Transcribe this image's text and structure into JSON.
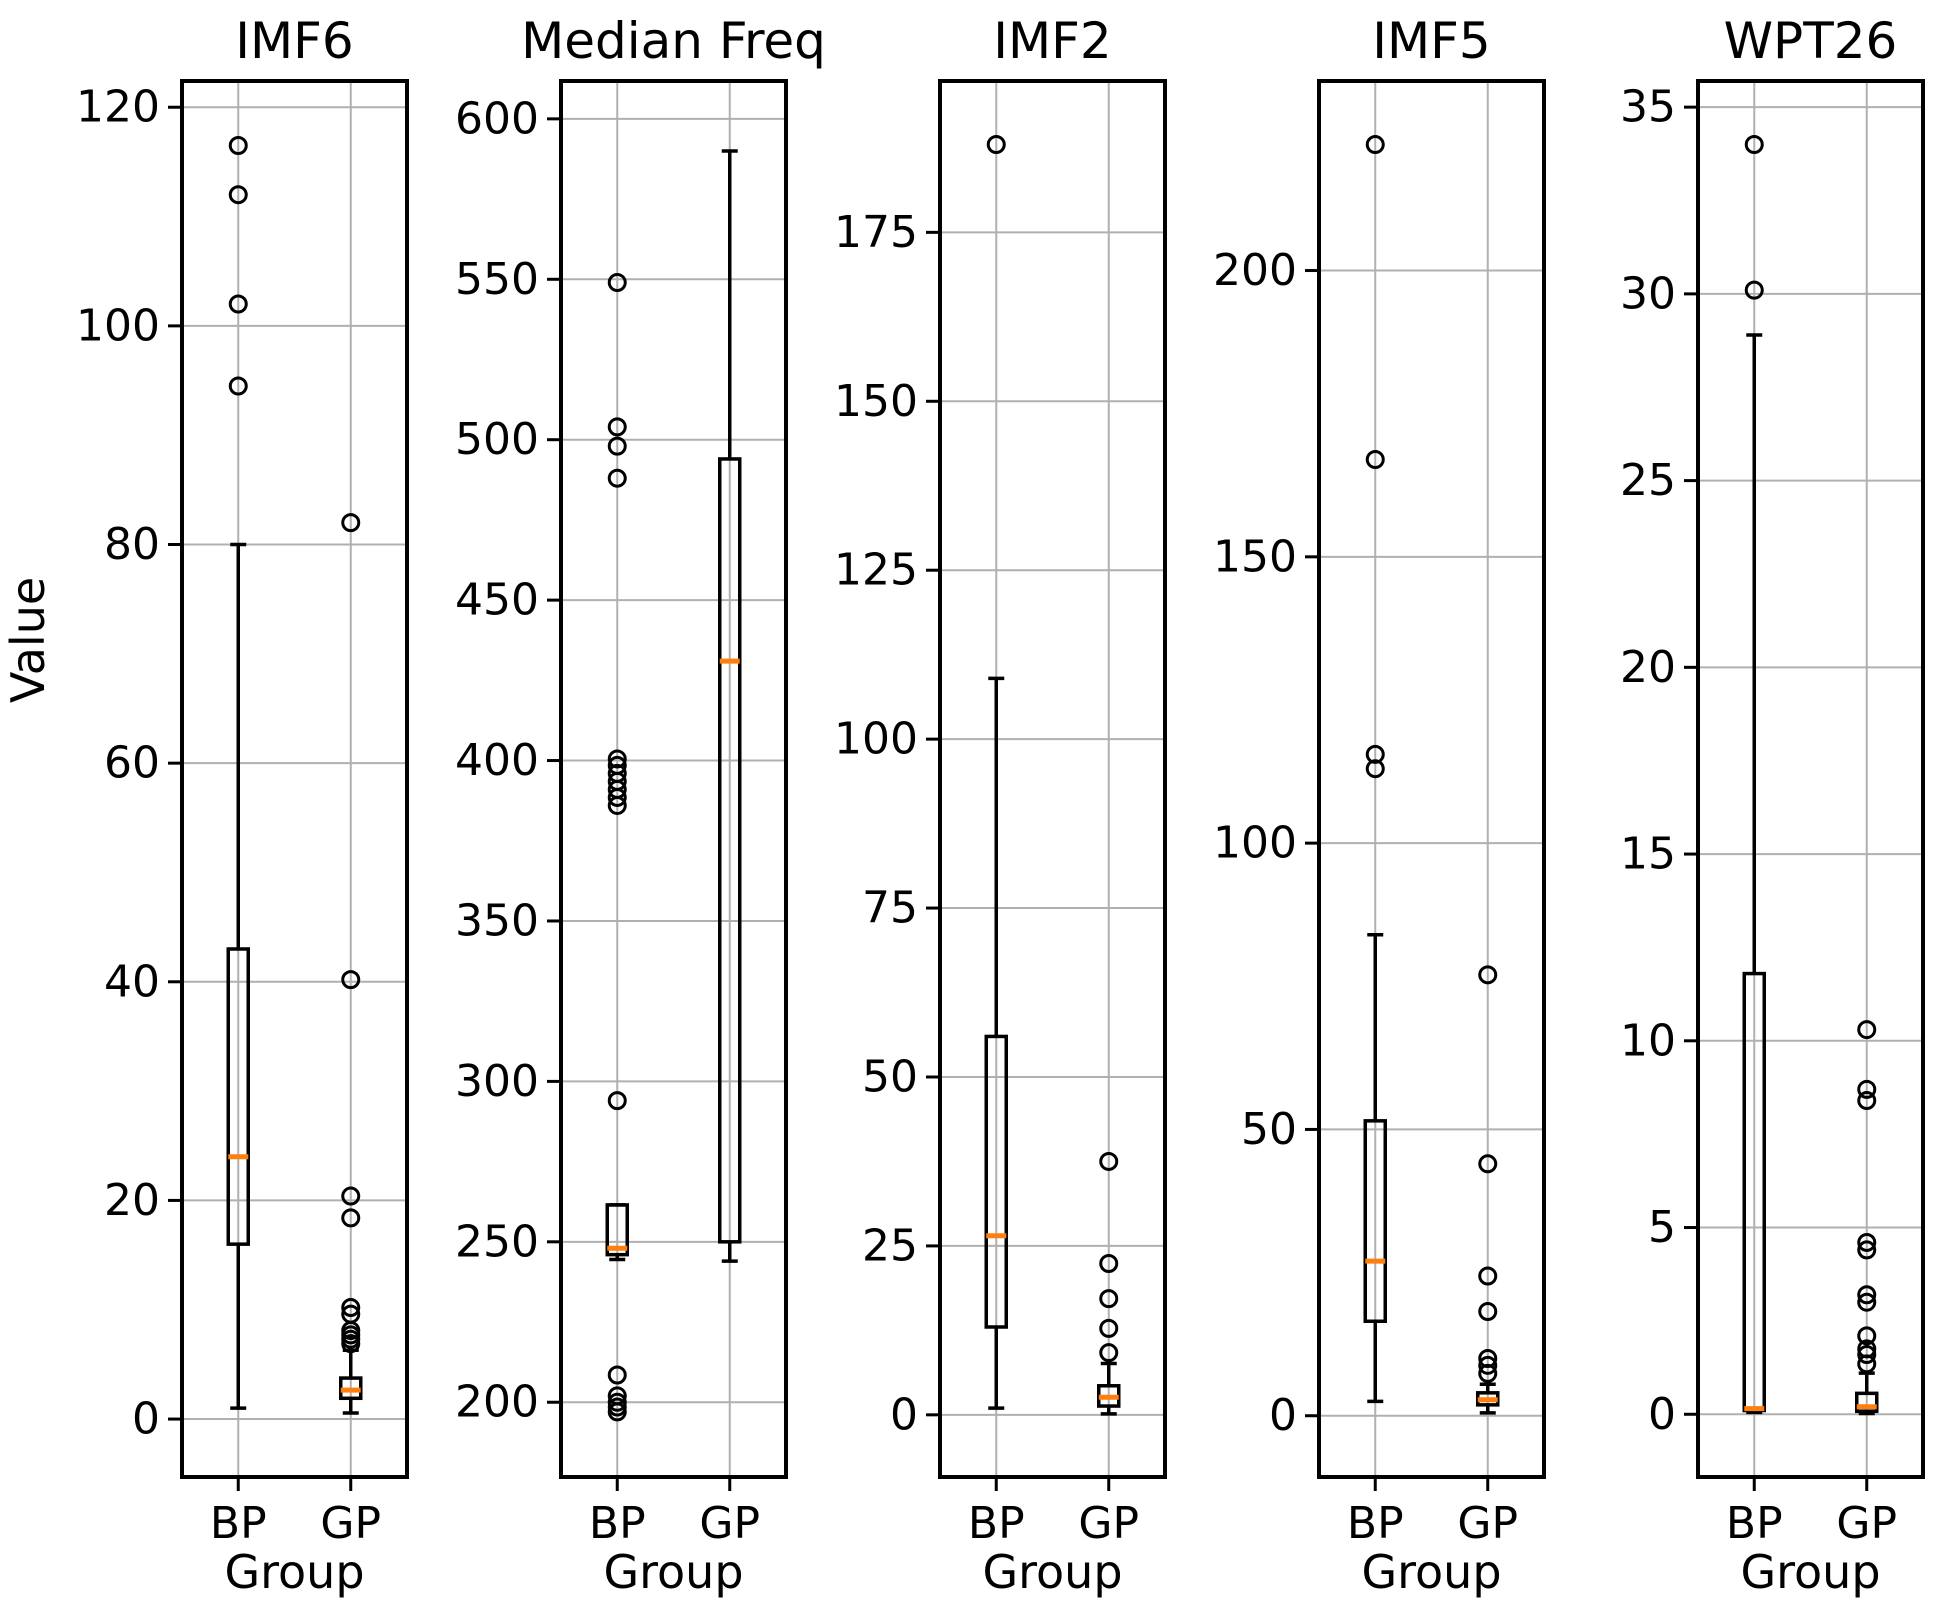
{
  "figure": {
    "ylabel": "Value",
    "xlabel": "Group",
    "categories": [
      "BP",
      "GP"
    ],
    "colors": {
      "median": "#ff7f0e",
      "box_edge": "#000000",
      "grid": "#b0b0b0",
      "background": "#ffffff"
    }
  },
  "chart_data": [
    {
      "type": "boxplot",
      "title": "IMF6",
      "xlabel": "Group",
      "categories": [
        "BP",
        "GP"
      ],
      "ylim": [
        -5.3,
        122.4
      ],
      "yticks": [
        0,
        20,
        40,
        60,
        80,
        100,
        120
      ],
      "grid": true,
      "boxes": [
        {
          "group": "BP",
          "whislo": 1.0,
          "q1": 16,
          "med": 24,
          "q3": 43,
          "whishi": 80,
          "fliers": [
            94.5,
            102,
            112,
            116.5
          ]
        },
        {
          "group": "GP",
          "whislo": 0.55,
          "q1": 1.9,
          "med": 2.65,
          "q3": 3.75,
          "whishi": 6.3,
          "fliers": [
            6.9,
            7.3,
            7.7,
            8.1,
            9.6,
            10.2,
            18.4,
            20.4,
            40.2,
            82
          ]
        }
      ]
    },
    {
      "type": "boxplot",
      "title": "Median Freq",
      "xlabel": "Group",
      "categories": [
        "BP",
        "GP"
      ],
      "ylim": [
        176.7,
        611.8
      ],
      "yticks": [
        200,
        250,
        300,
        350,
        400,
        450,
        500,
        550,
        600
      ],
      "grid": true,
      "boxes": [
        {
          "group": "BP",
          "whislo": 244.5,
          "q1": 246,
          "med": 248,
          "q3": 261.5,
          "whishi": 261.5,
          "fliers": [
            197,
            198.5,
            200,
            202,
            208.5,
            294,
            386,
            388.5,
            391,
            393.5,
            396,
            398.5,
            400.5,
            488,
            498,
            504,
            549
          ]
        },
        {
          "group": "GP",
          "whislo": 244,
          "q1": 250,
          "med": 431,
          "q3": 494,
          "whishi": 590,
          "fliers": []
        }
      ]
    },
    {
      "type": "boxplot",
      "title": "IMF2",
      "xlabel": "Group",
      "categories": [
        "BP",
        "GP"
      ],
      "ylim": [
        -9.2,
        197.4
      ],
      "yticks": [
        0,
        25,
        50,
        75,
        100,
        125,
        150,
        175
      ],
      "grid": true,
      "boxes": [
        {
          "group": "BP",
          "whislo": 1,
          "q1": 13,
          "med": 26.5,
          "q3": 56,
          "whishi": 109,
          "fliers": [
            188
          ]
        },
        {
          "group": "GP",
          "whislo": 0.15,
          "q1": 1.3,
          "med": 2.6,
          "q3": 4.3,
          "whishi": 7.6,
          "fliers": [
            9.2,
            12.8,
            17.2,
            22.4,
            37.5
          ]
        }
      ]
    },
    {
      "type": "boxplot",
      "title": "IMF5",
      "xlabel": "Group",
      "categories": [
        "BP",
        "GP"
      ],
      "ylim": [
        -10.7,
        233.1
      ],
      "yticks": [
        0,
        50,
        100,
        150,
        200
      ],
      "grid": true,
      "boxes": [
        {
          "group": "BP",
          "whislo": 2.5,
          "q1": 16.5,
          "med": 27,
          "q3": 51.5,
          "whishi": 84,
          "fliers": [
            113,
            115.5,
            167,
            222
          ]
        },
        {
          "group": "GP",
          "whislo": 0.5,
          "q1": 1.9,
          "med": 2.8,
          "q3": 4.0,
          "whishi": 5.5,
          "fliers": [
            7.4,
            8.8,
            10,
            18.2,
            24.4,
            44,
            77
          ]
        }
      ]
    },
    {
      "type": "boxplot",
      "title": "WPT26",
      "xlabel": "Group",
      "categories": [
        "BP",
        "GP"
      ],
      "ylim": [
        -1.68,
        35.7
      ],
      "yticks": [
        0,
        5,
        10,
        15,
        20,
        25,
        30,
        35
      ],
      "grid": true,
      "boxes": [
        {
          "group": "BP",
          "whislo": 0.05,
          "q1": 0.1,
          "med": 0.15,
          "q3": 11.8,
          "whishi": 28.9,
          "fliers": [
            30.1,
            34
          ]
        },
        {
          "group": "GP",
          "whislo": 0.02,
          "q1": 0.08,
          "med": 0.2,
          "q3": 0.56,
          "whishi": 1.1,
          "fliers": [
            1.35,
            1.6,
            1.75,
            2.1,
            3.0,
            3.2,
            4.4,
            4.6,
            8.4,
            8.7,
            10.3
          ]
        }
      ]
    }
  ]
}
